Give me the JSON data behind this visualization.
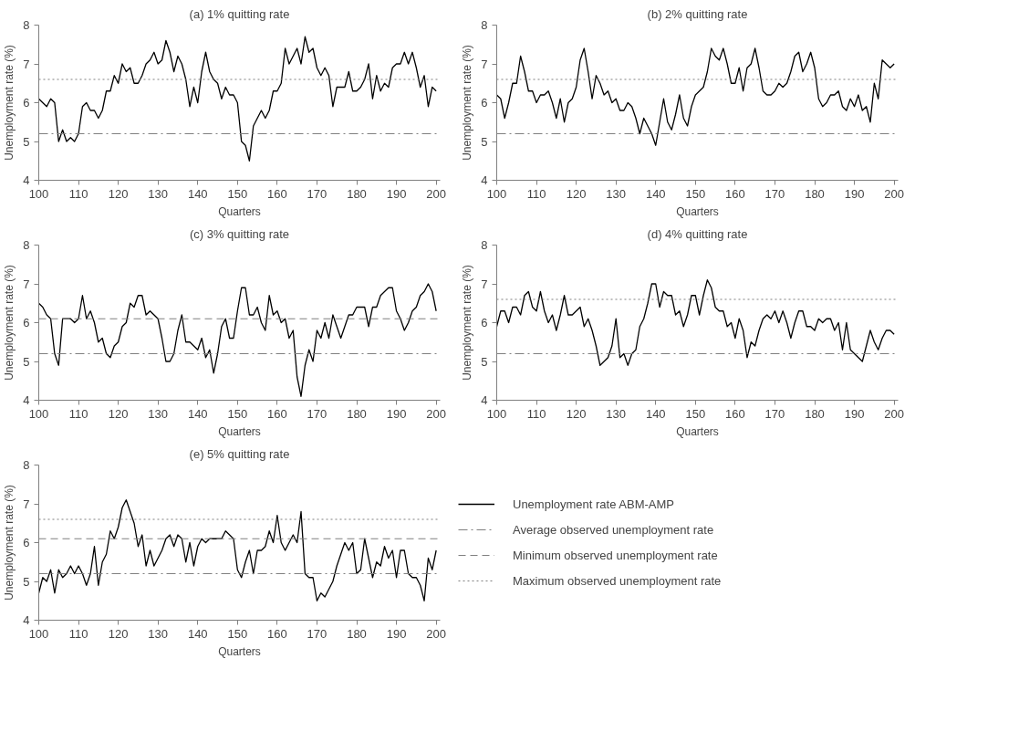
{
  "chart_data": [
    {
      "type": "line",
      "title": "(a) 1% quitting rate",
      "xlabel": "Quarters",
      "ylabel": "Unemployment rate (%)",
      "xlim": [
        100,
        201
      ],
      "ylim": [
        4,
        8
      ],
      "xticks": [
        100,
        110,
        120,
        130,
        140,
        150,
        160,
        170,
        180,
        190,
        200
      ],
      "yticks": [
        4,
        5,
        6,
        7,
        8
      ],
      "grid": false,
      "legend": false,
      "x": [
        100,
        101,
        102,
        103,
        104,
        105,
        106,
        107,
        108,
        109,
        110,
        111,
        112,
        113,
        114,
        115,
        116,
        117,
        118,
        119,
        120,
        121,
        122,
        123,
        124,
        125,
        126,
        127,
        128,
        129,
        130,
        131,
        132,
        133,
        134,
        135,
        136,
        137,
        138,
        139,
        140,
        141,
        142,
        143,
        144,
        145,
        146,
        147,
        148,
        149,
        150,
        151,
        152,
        153,
        154,
        155,
        156,
        157,
        158,
        159,
        160,
        161,
        162,
        163,
        164,
        165,
        166,
        167,
        168,
        169,
        170,
        171,
        172,
        173,
        174,
        175,
        176,
        177,
        178,
        179,
        180,
        181,
        182,
        183,
        184,
        185,
        186,
        187,
        188,
        189,
        190,
        191,
        192,
        193,
        194,
        195,
        196,
        197,
        198,
        199,
        200
      ],
      "series": [
        {
          "color": "#000000",
          "values": [
            6.1,
            6.0,
            5.9,
            6.1,
            6.0,
            5.0,
            5.3,
            5.0,
            5.1,
            5.0,
            5.2,
            5.9,
            6.0,
            5.8,
            5.8,
            5.6,
            5.8,
            6.3,
            6.3,
            6.7,
            6.5,
            7.0,
            6.8,
            6.9,
            6.5,
            6.5,
            6.7,
            7.0,
            7.1,
            7.3,
            7.0,
            7.1,
            7.6,
            7.3,
            6.8,
            7.2,
            7.0,
            6.6,
            5.9,
            6.4,
            6.0,
            6.8,
            7.3,
            6.8,
            6.6,
            6.5,
            6.1,
            6.4,
            6.2,
            6.2,
            6.0,
            5.0,
            4.9,
            4.5,
            5.4,
            5.6,
            5.8,
            5.6,
            5.8,
            6.3,
            6.3,
            6.5,
            7.4,
            7.0,
            7.2,
            7.4,
            7.0,
            7.7,
            7.3,
            7.4,
            6.9,
            6.7,
            6.9,
            6.7,
            5.9,
            6.4,
            6.4,
            6.4,
            6.8,
            6.3,
            6.3,
            6.4,
            6.6,
            7.0,
            6.1,
            6.7,
            6.3,
            6.5,
            6.4,
            6.9,
            7.0,
            7.0,
            7.3,
            7.0,
            7.3,
            6.9,
            6.4,
            6.7,
            5.9,
            6.4,
            6.3
          ]
        }
      ],
      "ref_lines": [
        {
          "axis": "y",
          "value": 6.6,
          "line_style": "dotted",
          "color": "#808080"
        },
        {
          "axis": "y",
          "value": 5.2,
          "line_style": "dashdot",
          "color": "#808080"
        }
      ]
    },
    {
      "type": "line",
      "title": "(b) 2% quitting rate",
      "xlabel": "Quarters",
      "ylabel": "Unemployment rate (%)",
      "xlim": [
        100,
        201
      ],
      "ylim": [
        4,
        8
      ],
      "xticks": [
        100,
        110,
        120,
        130,
        140,
        150,
        160,
        170,
        180,
        190,
        200
      ],
      "yticks": [
        4,
        5,
        6,
        7,
        8
      ],
      "grid": false,
      "legend": false,
      "x": [
        100,
        101,
        102,
        103,
        104,
        105,
        106,
        107,
        108,
        109,
        110,
        111,
        112,
        113,
        114,
        115,
        116,
        117,
        118,
        119,
        120,
        121,
        122,
        123,
        124,
        125,
        126,
        127,
        128,
        129,
        130,
        131,
        132,
        133,
        134,
        135,
        136,
        137,
        138,
        139,
        140,
        141,
        142,
        143,
        144,
        145,
        146,
        147,
        148,
        149,
        150,
        151,
        152,
        153,
        154,
        155,
        156,
        157,
        158,
        159,
        160,
        161,
        162,
        163,
        164,
        165,
        166,
        167,
        168,
        169,
        170,
        171,
        172,
        173,
        174,
        175,
        176,
        177,
        178,
        179,
        180,
        181,
        182,
        183,
        184,
        185,
        186,
        187,
        188,
        189,
        190,
        191,
        192,
        193,
        194,
        195,
        196,
        197,
        198,
        199,
        200
      ],
      "series": [
        {
          "color": "#000000",
          "values": [
            6.2,
            6.1,
            5.6,
            6.0,
            6.5,
            6.5,
            7.2,
            6.8,
            6.3,
            6.3,
            6.0,
            6.2,
            6.2,
            6.3,
            6.0,
            5.6,
            6.1,
            5.5,
            6.0,
            6.1,
            6.4,
            7.1,
            7.4,
            6.8,
            6.1,
            6.7,
            6.5,
            6.2,
            6.3,
            6.0,
            6.1,
            5.8,
            5.8,
            6.0,
            5.9,
            5.6,
            5.2,
            5.6,
            5.4,
            5.2,
            4.9,
            5.5,
            6.1,
            5.5,
            5.3,
            5.7,
            6.2,
            5.6,
            5.4,
            5.9,
            6.2,
            6.3,
            6.4,
            6.8,
            7.4,
            7.2,
            7.1,
            7.4,
            7.0,
            6.5,
            6.5,
            6.9,
            6.3,
            6.9,
            7.0,
            7.4,
            6.9,
            6.3,
            6.2,
            6.2,
            6.3,
            6.5,
            6.4,
            6.5,
            6.8,
            7.2,
            7.3,
            6.8,
            7.0,
            7.3,
            6.9,
            6.1,
            5.9,
            6.0,
            6.2,
            6.2,
            6.3,
            5.9,
            5.8,
            6.1,
            5.9,
            6.2,
            5.8,
            5.9,
            5.5,
            6.5,
            6.1,
            7.1,
            7.0,
            6.9,
            7.0
          ]
        }
      ],
      "ref_lines": [
        {
          "axis": "y",
          "value": 6.6,
          "line_style": "dotted",
          "color": "#808080"
        },
        {
          "axis": "y",
          "value": 5.2,
          "line_style": "dashdot",
          "color": "#808080"
        }
      ]
    },
    {
      "type": "line",
      "title": "(c) 3% quitting rate",
      "xlabel": "Quarters",
      "ylabel": "Unemployment rate (%)",
      "xlim": [
        100,
        201
      ],
      "ylim": [
        4,
        8
      ],
      "xticks": [
        100,
        110,
        120,
        130,
        140,
        150,
        160,
        170,
        180,
        190,
        200
      ],
      "yticks": [
        4,
        5,
        6,
        7,
        8
      ],
      "grid": false,
      "legend": false,
      "x": [
        100,
        101,
        102,
        103,
        104,
        105,
        106,
        107,
        108,
        109,
        110,
        111,
        112,
        113,
        114,
        115,
        116,
        117,
        118,
        119,
        120,
        121,
        122,
        123,
        124,
        125,
        126,
        127,
        128,
        129,
        130,
        131,
        132,
        133,
        134,
        135,
        136,
        137,
        138,
        139,
        140,
        141,
        142,
        143,
        144,
        145,
        146,
        147,
        148,
        149,
        150,
        151,
        152,
        153,
        154,
        155,
        156,
        157,
        158,
        159,
        160,
        161,
        162,
        163,
        164,
        165,
        166,
        167,
        168,
        169,
        170,
        171,
        172,
        173,
        174,
        175,
        176,
        177,
        178,
        179,
        180,
        181,
        182,
        183,
        184,
        185,
        186,
        187,
        188,
        189,
        190,
        191,
        192,
        193,
        194,
        195,
        196,
        197,
        198,
        199,
        200
      ],
      "series": [
        {
          "color": "#000000",
          "values": [
            6.5,
            6.4,
            6.2,
            6.1,
            5.2,
            4.9,
            6.1,
            6.1,
            6.1,
            6.0,
            6.1,
            6.7,
            6.1,
            6.3,
            6.0,
            5.5,
            5.6,
            5.2,
            5.1,
            5.4,
            5.5,
            5.9,
            6.0,
            6.5,
            6.4,
            6.7,
            6.7,
            6.2,
            6.3,
            6.2,
            6.1,
            5.6,
            5.0,
            5.0,
            5.2,
            5.8,
            6.2,
            5.5,
            5.5,
            5.4,
            5.3,
            5.6,
            5.1,
            5.3,
            4.7,
            5.2,
            5.9,
            6.1,
            5.6,
            5.6,
            6.3,
            6.9,
            6.9,
            6.2,
            6.2,
            6.4,
            6.0,
            5.8,
            6.7,
            6.2,
            6.3,
            6.0,
            6.1,
            5.6,
            5.8,
            4.6,
            4.1,
            4.9,
            5.3,
            5.0,
            5.8,
            5.6,
            6.0,
            5.6,
            6.2,
            5.9,
            5.6,
            5.9,
            6.2,
            6.2,
            6.4,
            6.4,
            6.4,
            5.9,
            6.4,
            6.4,
            6.7,
            6.8,
            6.9,
            6.9,
            6.3,
            6.1,
            5.8,
            6.0,
            6.3,
            6.4,
            6.7,
            6.8,
            7.0,
            6.8,
            6.3
          ]
        }
      ],
      "ref_lines": [
        {
          "axis": "y",
          "value": 6.1,
          "line_style": "dashed",
          "color": "#808080"
        },
        {
          "axis": "y",
          "value": 5.2,
          "line_style": "dashdot",
          "color": "#808080"
        }
      ]
    },
    {
      "type": "line",
      "title": "(d) 4% quitting rate",
      "xlabel": "Quarters",
      "ylabel": "Unemployment rate (%)",
      "xlim": [
        100,
        201
      ],
      "ylim": [
        4,
        8
      ],
      "xticks": [
        100,
        110,
        120,
        130,
        140,
        150,
        160,
        170,
        180,
        190,
        200
      ],
      "yticks": [
        4,
        5,
        6,
        7,
        8
      ],
      "grid": false,
      "legend": false,
      "x": [
        100,
        101,
        102,
        103,
        104,
        105,
        106,
        107,
        108,
        109,
        110,
        111,
        112,
        113,
        114,
        115,
        116,
        117,
        118,
        119,
        120,
        121,
        122,
        123,
        124,
        125,
        126,
        127,
        128,
        129,
        130,
        131,
        132,
        133,
        134,
        135,
        136,
        137,
        138,
        139,
        140,
        141,
        142,
        143,
        144,
        145,
        146,
        147,
        148,
        149,
        150,
        151,
        152,
        153,
        154,
        155,
        156,
        157,
        158,
        159,
        160,
        161,
        162,
        163,
        164,
        165,
        166,
        167,
        168,
        169,
        170,
        171,
        172,
        173,
        174,
        175,
        176,
        177,
        178,
        179,
        180,
        181,
        182,
        183,
        184,
        185,
        186,
        187,
        188,
        189,
        190,
        191,
        192,
        193,
        194,
        195,
        196,
        197,
        198,
        199,
        200
      ],
      "series": [
        {
          "color": "#000000",
          "values": [
            5.9,
            6.3,
            6.3,
            6.0,
            6.4,
            6.4,
            6.2,
            6.7,
            6.8,
            6.4,
            6.3,
            6.8,
            6.3,
            6.0,
            6.2,
            5.8,
            6.2,
            6.7,
            6.2,
            6.2,
            6.3,
            6.4,
            5.9,
            6.1,
            5.8,
            5.4,
            4.9,
            5.0,
            5.1,
            5.4,
            6.1,
            5.1,
            5.2,
            4.9,
            5.2,
            5.3,
            5.9,
            6.1,
            6.5,
            7.0,
            7.0,
            6.4,
            6.8,
            6.7,
            6.7,
            6.2,
            6.3,
            5.9,
            6.2,
            6.7,
            6.7,
            6.2,
            6.7,
            7.1,
            6.9,
            6.4,
            6.3,
            6.3,
            5.9,
            6.0,
            5.6,
            6.1,
            5.8,
            5.1,
            5.5,
            5.4,
            5.8,
            6.1,
            6.2,
            6.1,
            6.3,
            6.0,
            6.3,
            6.0,
            5.6,
            6.0,
            6.3,
            6.3,
            5.9,
            5.9,
            5.8,
            6.1,
            6.0,
            6.1,
            6.1,
            5.8,
            6.0,
            5.3,
            6.0,
            5.3,
            5.2,
            5.1,
            5.0,
            5.4,
            5.8,
            5.5,
            5.3,
            5.6,
            5.8,
            5.8,
            5.7
          ]
        }
      ],
      "ref_lines": [
        {
          "axis": "y",
          "value": 6.6,
          "line_style": "dotted",
          "color": "#808080"
        },
        {
          "axis": "y",
          "value": 5.2,
          "line_style": "dashdot",
          "color": "#808080"
        }
      ]
    },
    {
      "type": "line",
      "title": "(e) 5% quitting rate",
      "xlabel": "Quarters",
      "ylabel": "Unemployment rate (%)",
      "xlim": [
        100,
        201
      ],
      "ylim": [
        4,
        8
      ],
      "xticks": [
        100,
        110,
        120,
        130,
        140,
        150,
        160,
        170,
        180,
        190,
        200
      ],
      "yticks": [
        4,
        5,
        6,
        7,
        8
      ],
      "grid": false,
      "legend": "right",
      "x": [
        100,
        101,
        102,
        103,
        104,
        105,
        106,
        107,
        108,
        109,
        110,
        111,
        112,
        113,
        114,
        115,
        116,
        117,
        118,
        119,
        120,
        121,
        122,
        123,
        124,
        125,
        126,
        127,
        128,
        129,
        130,
        131,
        132,
        133,
        134,
        135,
        136,
        137,
        138,
        139,
        140,
        141,
        142,
        143,
        144,
        145,
        146,
        147,
        148,
        149,
        150,
        151,
        152,
        153,
        154,
        155,
        156,
        157,
        158,
        159,
        160,
        161,
        162,
        163,
        164,
        165,
        166,
        167,
        168,
        169,
        170,
        171,
        172,
        173,
        174,
        175,
        176,
        177,
        178,
        179,
        180,
        181,
        182,
        183,
        184,
        185,
        186,
        187,
        188,
        189,
        190,
        191,
        192,
        193,
        194,
        195,
        196,
        197,
        198,
        199,
        200
      ],
      "series": [
        {
          "name": "Unemployment rate ABM-AMP",
          "color": "#000000",
          "values": [
            4.7,
            5.1,
            5.0,
            5.3,
            4.7,
            5.3,
            5.1,
            5.2,
            5.4,
            5.2,
            5.4,
            5.2,
            4.9,
            5.2,
            5.9,
            4.9,
            5.5,
            5.7,
            6.3,
            6.1,
            6.4,
            6.9,
            7.1,
            6.8,
            6.5,
            5.9,
            6.2,
            5.4,
            5.8,
            5.4,
            5.6,
            5.8,
            6.1,
            6.2,
            5.9,
            6.2,
            6.1,
            5.5,
            6.0,
            5.4,
            5.9,
            6.1,
            6.0,
            6.1,
            6.1,
            6.1,
            6.1,
            6.3,
            6.2,
            6.1,
            5.3,
            5.1,
            5.5,
            5.8,
            5.2,
            5.8,
            5.8,
            5.9,
            6.3,
            6.0,
            6.7,
            6.0,
            5.8,
            6.0,
            6.2,
            6.0,
            6.8,
            5.2,
            5.1,
            5.1,
            4.5,
            4.7,
            4.6,
            4.8,
            5.0,
            5.4,
            5.7,
            6.0,
            5.8,
            6.0,
            5.2,
            5.3,
            6.1,
            5.6,
            5.1,
            5.5,
            5.4,
            5.9,
            5.6,
            5.8,
            5.1,
            5.8,
            5.8,
            5.2,
            5.1,
            5.1,
            4.9,
            4.5,
            5.6,
            5.3,
            5.8
          ]
        }
      ],
      "ref_lines": [
        {
          "axis": "y",
          "value": 5.2,
          "line_style": "dashdot",
          "color": "#808080",
          "label": "Average observed unemployment rate"
        },
        {
          "axis": "y",
          "value": 6.1,
          "line_style": "dashed",
          "color": "#808080",
          "label": "Minimum observed unemployment rate"
        },
        {
          "axis": "y",
          "value": 6.6,
          "line_style": "dotted",
          "color": "#808080",
          "label": "Maximum observed unemployment rate"
        }
      ]
    }
  ]
}
